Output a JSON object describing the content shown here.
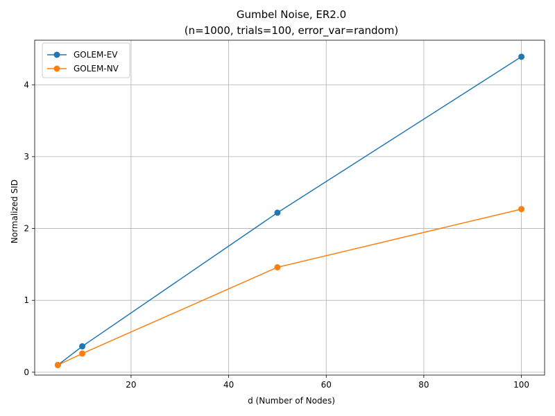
{
  "chart_data": {
    "type": "line",
    "title": "Gumbel Noise, ER2.0",
    "subtitle": "(n=1000, trials=100, error_var=random)",
    "xlabel": "d (Number of Nodes)",
    "ylabel": "Normalized SID",
    "x": [
      5,
      10,
      50,
      100
    ],
    "xlim": [
      0.25,
      104.75
    ],
    "ylim": [
      -0.04,
      4.62
    ],
    "xticks": [
      20,
      40,
      60,
      80,
      100
    ],
    "yticks": [
      0,
      1,
      2,
      3,
      4
    ],
    "grid": true,
    "legend_position": "top-left",
    "series": [
      {
        "name": "GOLEM-EV",
        "color": "#1f77b4",
        "values": [
          0.1,
          0.36,
          2.22,
          4.39
        ]
      },
      {
        "name": "GOLEM-NV",
        "color": "#ff7f0e",
        "values": [
          0.1,
          0.26,
          1.46,
          2.27
        ]
      }
    ]
  }
}
